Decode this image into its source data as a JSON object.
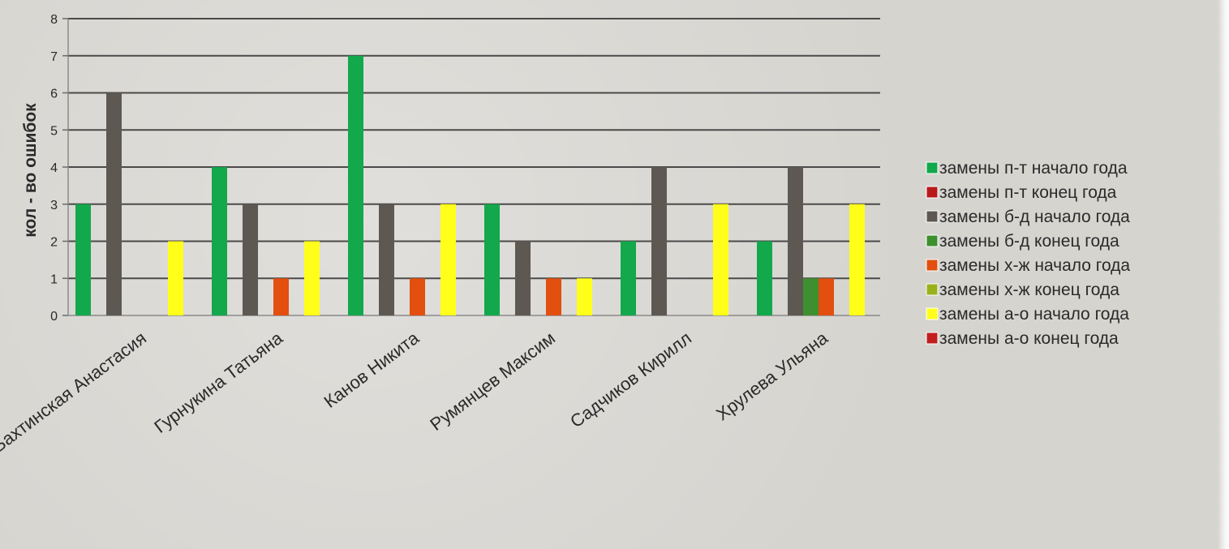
{
  "chart_data": {
    "type": "bar",
    "title": "",
    "xlabel": "",
    "ylabel": "кол - во ошибок",
    "ylim": [
      0,
      8
    ],
    "yticks": [
      0,
      1,
      2,
      3,
      4,
      5,
      6,
      7,
      8
    ],
    "grid": true,
    "legend_position": "right",
    "categories": [
      "Бахтинская Анастасия",
      "Гурнукина Татьяна",
      "Канов Никита",
      "Румянцев Максим",
      "Садчиков Кирилл",
      "Хрулева Ульяна"
    ],
    "series": [
      {
        "name": "замены п-т начало года",
        "color": "#12a84b",
        "values": [
          3,
          4,
          7,
          3,
          2,
          2
        ]
      },
      {
        "name": "замены п-т конец года",
        "color": "#b8191a",
        "values": [
          0,
          0,
          0,
          0,
          0,
          0
        ]
      },
      {
        "name": "замены б-д начало года",
        "color": "#5e5852",
        "values": [
          6,
          3,
          3,
          2,
          4,
          4
        ]
      },
      {
        "name": "замены б-д конец года",
        "color": "#3e8f2f",
        "values": [
          0,
          0,
          0,
          0,
          0,
          1
        ]
      },
      {
        "name": "замены х-ж начало года",
        "color": "#e24f0e",
        "values": [
          0,
          1,
          1,
          1,
          0,
          1
        ]
      },
      {
        "name": "замены х-ж конец года",
        "color": "#99b21c",
        "values": [
          0,
          0,
          0,
          0,
          0,
          0
        ]
      },
      {
        "name": "замены а-о начало года",
        "color": "#ffff1a",
        "values": [
          2,
          2,
          3,
          1,
          3,
          3
        ]
      },
      {
        "name": "замены а-о конец года",
        "color": "#c11e1e",
        "values": [
          0,
          0,
          0,
          0,
          0,
          0
        ]
      }
    ]
  }
}
